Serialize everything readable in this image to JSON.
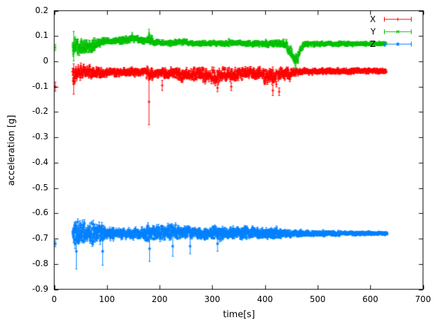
{
  "figure": {
    "background": "#ffffff",
    "text_color": "#000000"
  },
  "chart_data": {
    "type": "scatter",
    "style": "points-with-errorbars",
    "title": "",
    "xlabel": "time[s]",
    "ylabel": "acceleration [g]",
    "xlim": [
      0,
      700
    ],
    "ylim": [
      -0.9,
      0.2
    ],
    "xticks": [
      0,
      100,
      200,
      300,
      400,
      500,
      600,
      700
    ],
    "xtick_labels": [
      "0",
      "100",
      "200",
      "300",
      "400",
      "500",
      "600",
      "700"
    ],
    "yticks": [
      0.2,
      0.1,
      0,
      -0.1,
      -0.2,
      -0.3,
      -0.4,
      -0.5,
      -0.6,
      -0.7,
      -0.8,
      -0.9
    ],
    "ytick_labels": [
      "0.2",
      "0.1",
      "0",
      "-0.1",
      "-0.2",
      "-0.3",
      "-0.4",
      "-0.5",
      "-0.6",
      "-0.7",
      "-0.8",
      "-0.9"
    ],
    "grid": false,
    "border": true,
    "tick_direction": "in",
    "legend_position": "top-right-inside",
    "segment_format": [
      "t0",
      "t1",
      "mean0",
      "mean1",
      "noise0",
      "noise1",
      "errbar"
    ],
    "spike_format": [
      "t",
      "y",
      "err"
    ],
    "series": [
      {
        "name": "X",
        "color": "#ff0000",
        "marker": "plus",
        "baseline": -0.05,
        "first_point": {
          "t": 2,
          "y": -0.1,
          "err": 0.018
        },
        "envelope_segments": [
          [
            35,
            45,
            -0.055,
            -0.045,
            0.045,
            0.03,
            0.012
          ],
          [
            45,
            62,
            -0.045,
            -0.04,
            0.03,
            0.022,
            0.01
          ],
          [
            62,
            95,
            -0.04,
            -0.045,
            0.028,
            0.02,
            0.008
          ],
          [
            95,
            175,
            -0.045,
            -0.042,
            0.016,
            0.016,
            0.007
          ],
          [
            175,
            188,
            -0.05,
            -0.048,
            0.028,
            0.025,
            0.01
          ],
          [
            188,
            240,
            -0.045,
            -0.05,
            0.02,
            0.024,
            0.008
          ],
          [
            240,
            268,
            -0.055,
            -0.05,
            0.028,
            0.024,
            0.008
          ],
          [
            268,
            298,
            -0.05,
            -0.058,
            0.024,
            0.03,
            0.008
          ],
          [
            298,
            318,
            -0.062,
            -0.055,
            0.032,
            0.028,
            0.009
          ],
          [
            318,
            348,
            -0.05,
            -0.052,
            0.026,
            0.028,
            0.008
          ],
          [
            348,
            368,
            -0.05,
            -0.045,
            0.028,
            0.02,
            0.008
          ],
          [
            368,
            396,
            -0.045,
            -0.05,
            0.02,
            0.028,
            0.008
          ],
          [
            396,
            422,
            -0.058,
            -0.062,
            0.032,
            0.03,
            0.01
          ],
          [
            422,
            448,
            -0.05,
            -0.048,
            0.026,
            0.028,
            0.009
          ],
          [
            448,
            466,
            -0.045,
            -0.04,
            0.018,
            0.014,
            0.006
          ],
          [
            466,
            630,
            -0.04,
            -0.038,
            0.012,
            0.009,
            0.005
          ]
        ],
        "spikes": [
          [
            37,
            -0.07,
            0.06
          ],
          [
            180,
            -0.16,
            0.09
          ],
          [
            205,
            -0.095,
            0.02
          ],
          [
            310,
            -0.105,
            0.015
          ],
          [
            336,
            -0.1,
            0.015
          ],
          [
            415,
            -0.115,
            0.02
          ],
          [
            427,
            -0.12,
            0.015
          ]
        ]
      },
      {
        "name": "Y",
        "color": "#00c000",
        "marker": "cross",
        "baseline": 0.07,
        "first_point": {
          "t": 2,
          "y": 0.055,
          "err": 0.012
        },
        "envelope_segments": [
          [
            35,
            52,
            0.058,
            0.055,
            0.042,
            0.032,
            0.01
          ],
          [
            52,
            72,
            0.052,
            0.06,
            0.028,
            0.024,
            0.008
          ],
          [
            72,
            92,
            0.062,
            0.075,
            0.024,
            0.018,
            0.008
          ],
          [
            92,
            126,
            0.08,
            0.08,
            0.012,
            0.012,
            0.006
          ],
          [
            126,
            158,
            0.085,
            0.09,
            0.014,
            0.014,
            0.006
          ],
          [
            158,
            176,
            0.086,
            0.08,
            0.012,
            0.012,
            0.006
          ],
          [
            176,
            188,
            0.088,
            0.082,
            0.018,
            0.014,
            0.008
          ],
          [
            188,
            226,
            0.075,
            0.072,
            0.01,
            0.01,
            0.005
          ],
          [
            226,
            252,
            0.075,
            0.079,
            0.012,
            0.011,
            0.005
          ],
          [
            252,
            330,
            0.072,
            0.07,
            0.01,
            0.01,
            0.005
          ],
          [
            330,
            362,
            0.074,
            0.072,
            0.012,
            0.01,
            0.005
          ],
          [
            362,
            396,
            0.07,
            0.072,
            0.01,
            0.012,
            0.005
          ],
          [
            396,
            422,
            0.068,
            0.07,
            0.014,
            0.012,
            0.006
          ],
          [
            422,
            442,
            0.073,
            0.065,
            0.012,
            0.018,
            0.006
          ],
          [
            442,
            454,
            0.05,
            0.022,
            0.028,
            0.022,
            0.008
          ],
          [
            454,
            463,
            0.01,
            0.005,
            0.018,
            0.018,
            0.008
          ],
          [
            463,
            472,
            0.025,
            0.06,
            0.018,
            0.014,
            0.006
          ],
          [
            472,
            630,
            0.068,
            0.07,
            0.01,
            0.007,
            0.004
          ]
        ],
        "spikes": [
          [
            37,
            0.06,
            0.058
          ],
          [
            148,
            0.104,
            0.01
          ],
          [
            180,
            0.112,
            0.015
          ],
          [
            458,
            -0.018,
            0.01
          ]
        ]
      },
      {
        "name": "Z",
        "color": "#0080ff",
        "marker": "star",
        "baseline": -0.68,
        "first_point": {
          "t": 2,
          "y": -0.72,
          "err": 0.012
        },
        "envelope_segments": [
          [
            35,
            55,
            -0.68,
            -0.678,
            0.055,
            0.05,
            0.016
          ],
          [
            55,
            75,
            -0.672,
            -0.68,
            0.05,
            0.045,
            0.013
          ],
          [
            75,
            95,
            -0.68,
            -0.679,
            0.04,
            0.034,
            0.012
          ],
          [
            95,
            130,
            -0.68,
            -0.679,
            0.025,
            0.022,
            0.01
          ],
          [
            130,
            170,
            -0.68,
            -0.679,
            0.02,
            0.02,
            0.009
          ],
          [
            170,
            192,
            -0.676,
            -0.68,
            0.034,
            0.03,
            0.011
          ],
          [
            192,
            230,
            -0.671,
            -0.676,
            0.034,
            0.03,
            0.01
          ],
          [
            230,
            262,
            -0.675,
            -0.671,
            0.03,
            0.028,
            0.01
          ],
          [
            262,
            300,
            -0.679,
            -0.68,
            0.022,
            0.022,
            0.008
          ],
          [
            300,
            322,
            -0.676,
            -0.68,
            0.03,
            0.025,
            0.009
          ],
          [
            322,
            360,
            -0.68,
            -0.678,
            0.022,
            0.022,
            0.008
          ],
          [
            360,
            382,
            -0.676,
            -0.68,
            0.026,
            0.022,
            0.008
          ],
          [
            382,
            412,
            -0.68,
            -0.678,
            0.02,
            0.02,
            0.008
          ],
          [
            412,
            432,
            -0.676,
            -0.68,
            0.024,
            0.02,
            0.008
          ],
          [
            432,
            470,
            -0.68,
            -0.679,
            0.016,
            0.013,
            0.006
          ],
          [
            470,
            522,
            -0.68,
            -0.679,
            0.012,
            0.01,
            0.005
          ],
          [
            522,
            632,
            -0.68,
            -0.679,
            0.009,
            0.006,
            0.004
          ]
        ],
        "spikes": [
          [
            42,
            -0.75,
            0.07
          ],
          [
            92,
            -0.75,
            0.055
          ],
          [
            181,
            -0.74,
            0.05
          ],
          [
            225,
            -0.73,
            0.04
          ],
          [
            258,
            -0.73,
            0.03
          ],
          [
            310,
            -0.72,
            0.03
          ]
        ]
      }
    ]
  }
}
